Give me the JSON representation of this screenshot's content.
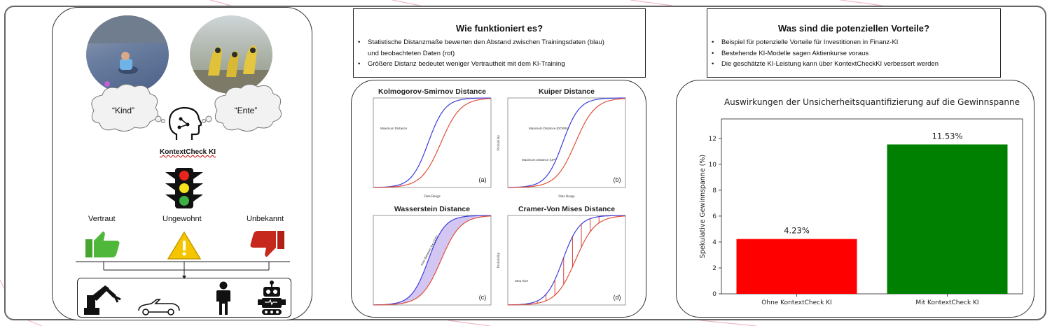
{
  "left_panel": {
    "thought_left": "“Kind”",
    "thought_right": "“Ente”",
    "brand": "KontextCheck KI",
    "levels": [
      {
        "label": "Vertraut",
        "icon": "thumbs-up-icon",
        "color": "#4caf2e"
      },
      {
        "label": "Ungewohnt",
        "icon": "warning-icon",
        "color": "#f5c500"
      },
      {
        "label": "Unbekannt",
        "icon": "thumbs-down-icon",
        "color": "#c0231b"
      }
    ],
    "applications": [
      "robot-arm-icon",
      "car-icon",
      "person-icon",
      "robot-icon"
    ]
  },
  "how_box": {
    "title": "Wie funktioniert es?",
    "bullets": [
      "Statistische Distanzmaße bewerten den Abstand zwischen Trainingsdaten (blau)",
      "und beobachteten Daten (rot)",
      "Größere Distanz bedeutet weniger Vertrautheit mit dem KI-Training"
    ]
  },
  "benefits_box": {
    "title": "Was sind die potenziellen Vorteile?",
    "bullets": [
      "Beispiel für potenzielle Vorteile für Investitionen in Finanz-KI",
      "Bestehende KI-Modelle sagen Aktienkurse voraus",
      "Die geschätzte KI-Leistung kann über KontextCheckKI verbessert werden"
    ]
  },
  "distance_plots": [
    {
      "title": "Kolmogorov-Smirnov Distance",
      "tag": "(a)",
      "xlabel": "Data Range",
      "ylabel": "",
      "annotation": "Maximum Distance"
    },
    {
      "title": "Kuiper Distance",
      "tag": "(b)",
      "xlabel": "Data Range",
      "ylabel": "Probability",
      "annotation": "Maximum Distance (DOWN)",
      "annotation2": "Maximum Distance (UP)"
    },
    {
      "title": "Wasserstein Distance",
      "tag": "(c)",
      "xlabel": "",
      "ylabel": "",
      "annotation": "Area Between the CDFs"
    },
    {
      "title": "Cramer-Von Mises Distance",
      "tag": "(d)",
      "xlabel": "",
      "ylabel": "Probability",
      "annotation": "Step Size"
    }
  ],
  "chart_data": {
    "type": "bar",
    "title": "Auswirkungen der Unsicherheitsquantifizierung auf die Gewinnspanne",
    "categories": [
      "Ohne KontextCheck KI",
      "Mit KontextCheck KI"
    ],
    "values": [
      4.23,
      11.53
    ],
    "value_labels": [
      "4.23%",
      "11.53%"
    ],
    "colors": [
      "#ff0000",
      "#008000"
    ],
    "xlabel": "",
    "ylabel": "Spekulative Gewinnspanne (%)",
    "ylim": [
      0,
      13.5
    ],
    "yticks": [
      0,
      2,
      4,
      6,
      8,
      10,
      12
    ],
    "grid": false
  }
}
